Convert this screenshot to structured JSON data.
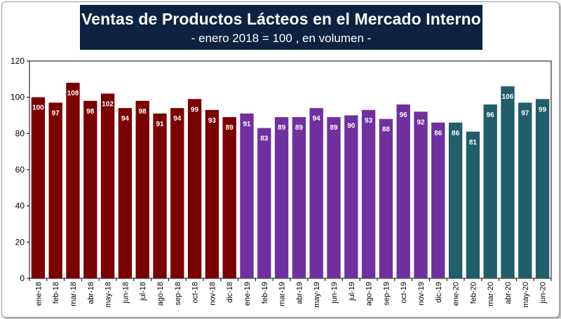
{
  "header": {
    "title": "Ventas de Productos Lácteos en el Mercado Interno",
    "subtitle": "- enero 2018 = 100 , en volumen -"
  },
  "chart_data": {
    "type": "bar",
    "title": "Ventas de Productos Lácteos en el Mercado Interno",
    "subtitle": "- enero 2018 = 100 , en volumen -",
    "xlabel": "",
    "ylabel": "",
    "ylim": [
      0,
      120
    ],
    "yticks": [
      0,
      20,
      40,
      60,
      80,
      100,
      120
    ],
    "grid": false,
    "legend": "none",
    "categories": [
      "ene-18",
      "feb-18",
      "mar-18",
      "abr-18",
      "may-18",
      "jun-18",
      "jul-18",
      "ago-18",
      "sep-18",
      "oct-18",
      "nov-18",
      "dic-18",
      "ene-19",
      "feb-19",
      "mar-19",
      "abr-19",
      "may-19",
      "jun-19",
      "jul-19",
      "ago-19",
      "sep-19",
      "oct-19",
      "nov-19",
      "dic-19",
      "ene-20",
      "feb-20",
      "mar-20",
      "abr-20",
      "may-20",
      "jun-20"
    ],
    "values": [
      100,
      97,
      108,
      98,
      102,
      94,
      98,
      91,
      94,
      99,
      93,
      89,
      91,
      83,
      89,
      89,
      94,
      89,
      90,
      93,
      88,
      96,
      92,
      86,
      86,
      81,
      96,
      106,
      97,
      99
    ],
    "year_colors": {
      "2018": "#7b0000",
      "2019": "#7030a0",
      "2020": "#215d6b"
    }
  }
}
